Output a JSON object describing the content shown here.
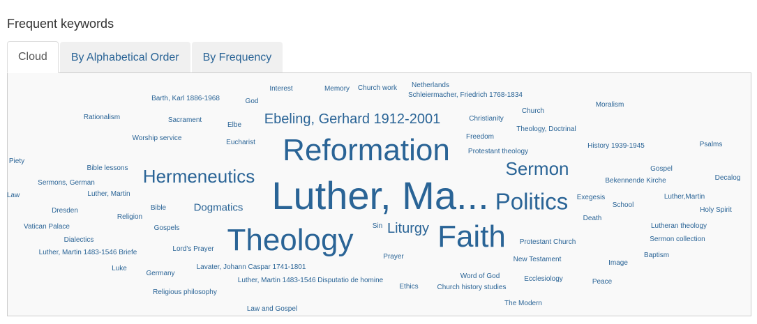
{
  "heading": "Frequent keywords",
  "tabs": [
    {
      "label": "Cloud",
      "active": true
    },
    {
      "label": "By Alphabetical Order",
      "active": false
    },
    {
      "label": "By Frequency",
      "active": false
    }
  ],
  "link_color": "#2a6496",
  "keywords": [
    {
      "text": "Interest",
      "weight": 1
    },
    {
      "text": "Memory",
      "weight": 1
    },
    {
      "text": "Church work",
      "weight": 1
    },
    {
      "text": "Netherlands",
      "weight": 1
    },
    {
      "text": "Schleiermacher, Friedrich 1768-1834",
      "weight": 1
    },
    {
      "text": "Barth, Karl 1886-1968",
      "weight": 1
    },
    {
      "text": "God",
      "weight": 1
    },
    {
      "text": "Rationalism",
      "weight": 1
    },
    {
      "text": "Sacrament",
      "weight": 1
    },
    {
      "text": "Elbe",
      "weight": 1
    },
    {
      "text": "Ebeling, Gerhard 1912-2001",
      "weight": 3
    },
    {
      "text": "Christianity",
      "weight": 1
    },
    {
      "text": "Church",
      "weight": 1
    },
    {
      "text": "Moralism",
      "weight": 1
    },
    {
      "text": "Theology, Doctrinal",
      "weight": 1
    },
    {
      "text": "Worship service",
      "weight": 1
    },
    {
      "text": "Eucharist",
      "weight": 1
    },
    {
      "text": "Freedom",
      "weight": 1
    },
    {
      "text": "Protestant theology",
      "weight": 1
    },
    {
      "text": "History 1939-1945",
      "weight": 1
    },
    {
      "text": "Psalms",
      "weight": 1
    },
    {
      "text": "Reformation",
      "weight": 6
    },
    {
      "text": "Piety",
      "weight": 1
    },
    {
      "text": "Bible lessons",
      "weight": 1
    },
    {
      "text": "Hermeneutics",
      "weight": 4
    },
    {
      "text": "Sermon",
      "weight": 4
    },
    {
      "text": "Gospel",
      "weight": 1
    },
    {
      "text": "Sermons, German",
      "weight": 1
    },
    {
      "text": "Bekennende Kirche",
      "weight": 1
    },
    {
      "text": "Decalog",
      "weight": 1
    },
    {
      "text": "Law",
      "weight": 1
    },
    {
      "text": "Luther, Martin",
      "weight": 1
    },
    {
      "text": "Luther, Ma...",
      "weight": 7
    },
    {
      "text": "Exegesis",
      "weight": 1
    },
    {
      "text": "Luther,Martin",
      "weight": 1
    },
    {
      "text": "Politics",
      "weight": 5
    },
    {
      "text": "School",
      "weight": 1
    },
    {
      "text": "Dresden",
      "weight": 1
    },
    {
      "text": "Bible",
      "weight": 1
    },
    {
      "text": "Dogmatics",
      "weight": 2
    },
    {
      "text": "Holy Spirit",
      "weight": 1
    },
    {
      "text": "Religion",
      "weight": 1
    },
    {
      "text": "Death",
      "weight": 1
    },
    {
      "text": "Vatican Palace",
      "weight": 1
    },
    {
      "text": "Gospels",
      "weight": 1
    },
    {
      "text": "Sin",
      "weight": 1
    },
    {
      "text": "Liturgy",
      "weight": 3
    },
    {
      "text": "Faith",
      "weight": 6
    },
    {
      "text": "Lutheran theology",
      "weight": 1
    },
    {
      "text": "Theology",
      "weight": 6
    },
    {
      "text": "Dialectics",
      "weight": 1
    },
    {
      "text": "Protestant Church",
      "weight": 1
    },
    {
      "text": "Sermon collection",
      "weight": 1
    },
    {
      "text": "Lord's Prayer",
      "weight": 1
    },
    {
      "text": "Luther, Martin 1483-1546 Briefe",
      "weight": 1
    },
    {
      "text": "Prayer",
      "weight": 1
    },
    {
      "text": "Baptism",
      "weight": 1
    },
    {
      "text": "New Testament",
      "weight": 1
    },
    {
      "text": "Image",
      "weight": 1
    },
    {
      "text": "Lavater, Johann Caspar 1741-1801",
      "weight": 1
    },
    {
      "text": "Luke",
      "weight": 1
    },
    {
      "text": "Germany",
      "weight": 1
    },
    {
      "text": "Word of God",
      "weight": 1
    },
    {
      "text": "Ecclesiology",
      "weight": 1
    },
    {
      "text": "Luther, Martin 1483-1546 Disputatio de homine",
      "weight": 1
    },
    {
      "text": "Peace",
      "weight": 1
    },
    {
      "text": "Ethics",
      "weight": 1
    },
    {
      "text": "Church history studies",
      "weight": 1
    },
    {
      "text": "Religious philosophy",
      "weight": 1
    },
    {
      "text": "The Modern",
      "weight": 1
    },
    {
      "text": "Law and Gospel",
      "weight": 1
    }
  ]
}
